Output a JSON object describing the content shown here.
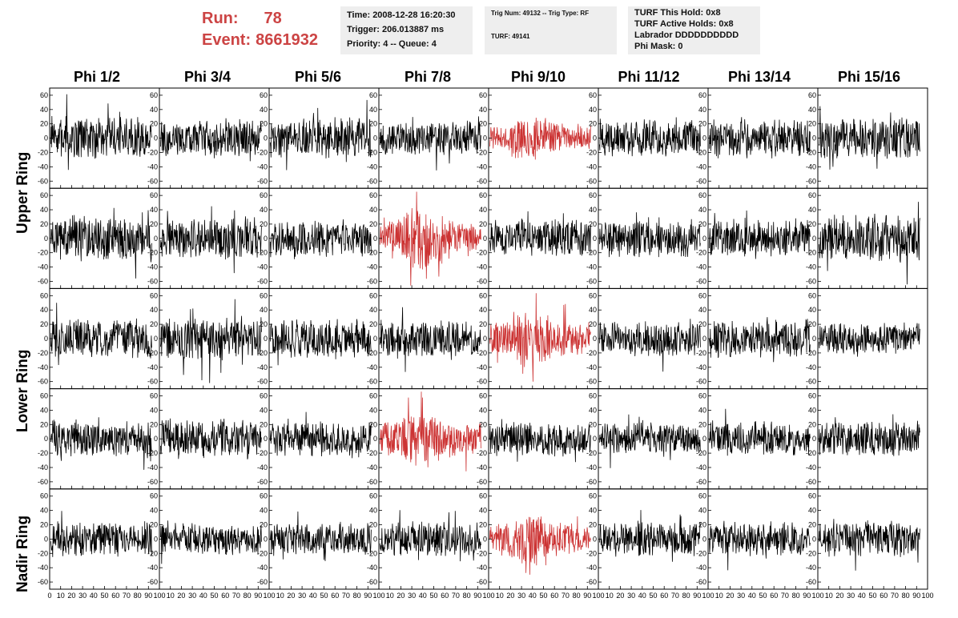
{
  "header": {
    "run_label": "Run:",
    "run_value": "78",
    "event_label": "Event:",
    "event_value": "8661932",
    "time_info": [
      "Time: 2008-12-28 16:20:30",
      "Trigger: 206.013887 ms",
      "Priority: 4 -- Queue: 4"
    ],
    "trig_info": [
      "Trig Num: 49132 -- Trig Type: RF",
      "TURF: 49141"
    ],
    "turf_info": [
      "TURF This Hold: 0x8",
      "TURF Active Holds: 0x8",
      "Labrador DDDDDDDDDD",
      "Phi Mask: 0"
    ]
  },
  "columns": [
    "Phi 1/2",
    "Phi 3/4",
    "Phi 5/6",
    "Phi 7/8",
    "Phi 9/10",
    "Phi 11/12",
    "Phi 13/14",
    "Phi 15/16"
  ],
  "row_labels": [
    "Upper Ring",
    "Lower Ring",
    "Nadir Ring"
  ],
  "colors": {
    "normal": "#000000",
    "highlight": "#cc3333",
    "run_text": "#cc4444",
    "info_bg": "#eeeeee"
  },
  "chart_data": {
    "type": "line",
    "description": "Grid of waveform panels, 5 rows x 8 columns; each panel shows a noise-like voltage trace over sample index.",
    "xlim": [
      0,
      100
    ],
    "ylim": [
      -70,
      70
    ],
    "x_ticks": [
      0,
      10,
      20,
      30,
      40,
      50,
      60,
      70,
      80,
      90,
      100
    ],
    "y_ticks": [
      -60,
      -40,
      -20,
      0,
      20,
      40,
      60
    ],
    "n_samples": 260,
    "panel_rows": 5,
    "panel_cols": 8,
    "highlighted_panels": [
      [
        0,
        4
      ],
      [
        1,
        3
      ],
      [
        2,
        4
      ],
      [
        3,
        3
      ],
      [
        4,
        4
      ]
    ],
    "amplitudes": [
      [
        16,
        14,
        15,
        13,
        13,
        14,
        15,
        16
      ],
      [
        17,
        16,
        14,
        17,
        14,
        14,
        15,
        18
      ],
      [
        15,
        16,
        15,
        14,
        16,
        13,
        14,
        12
      ],
      [
        14,
        15,
        14,
        16,
        13,
        12,
        13,
        13
      ],
      [
        13,
        12,
        12,
        13,
        14,
        13,
        13,
        14
      ]
    ]
  }
}
